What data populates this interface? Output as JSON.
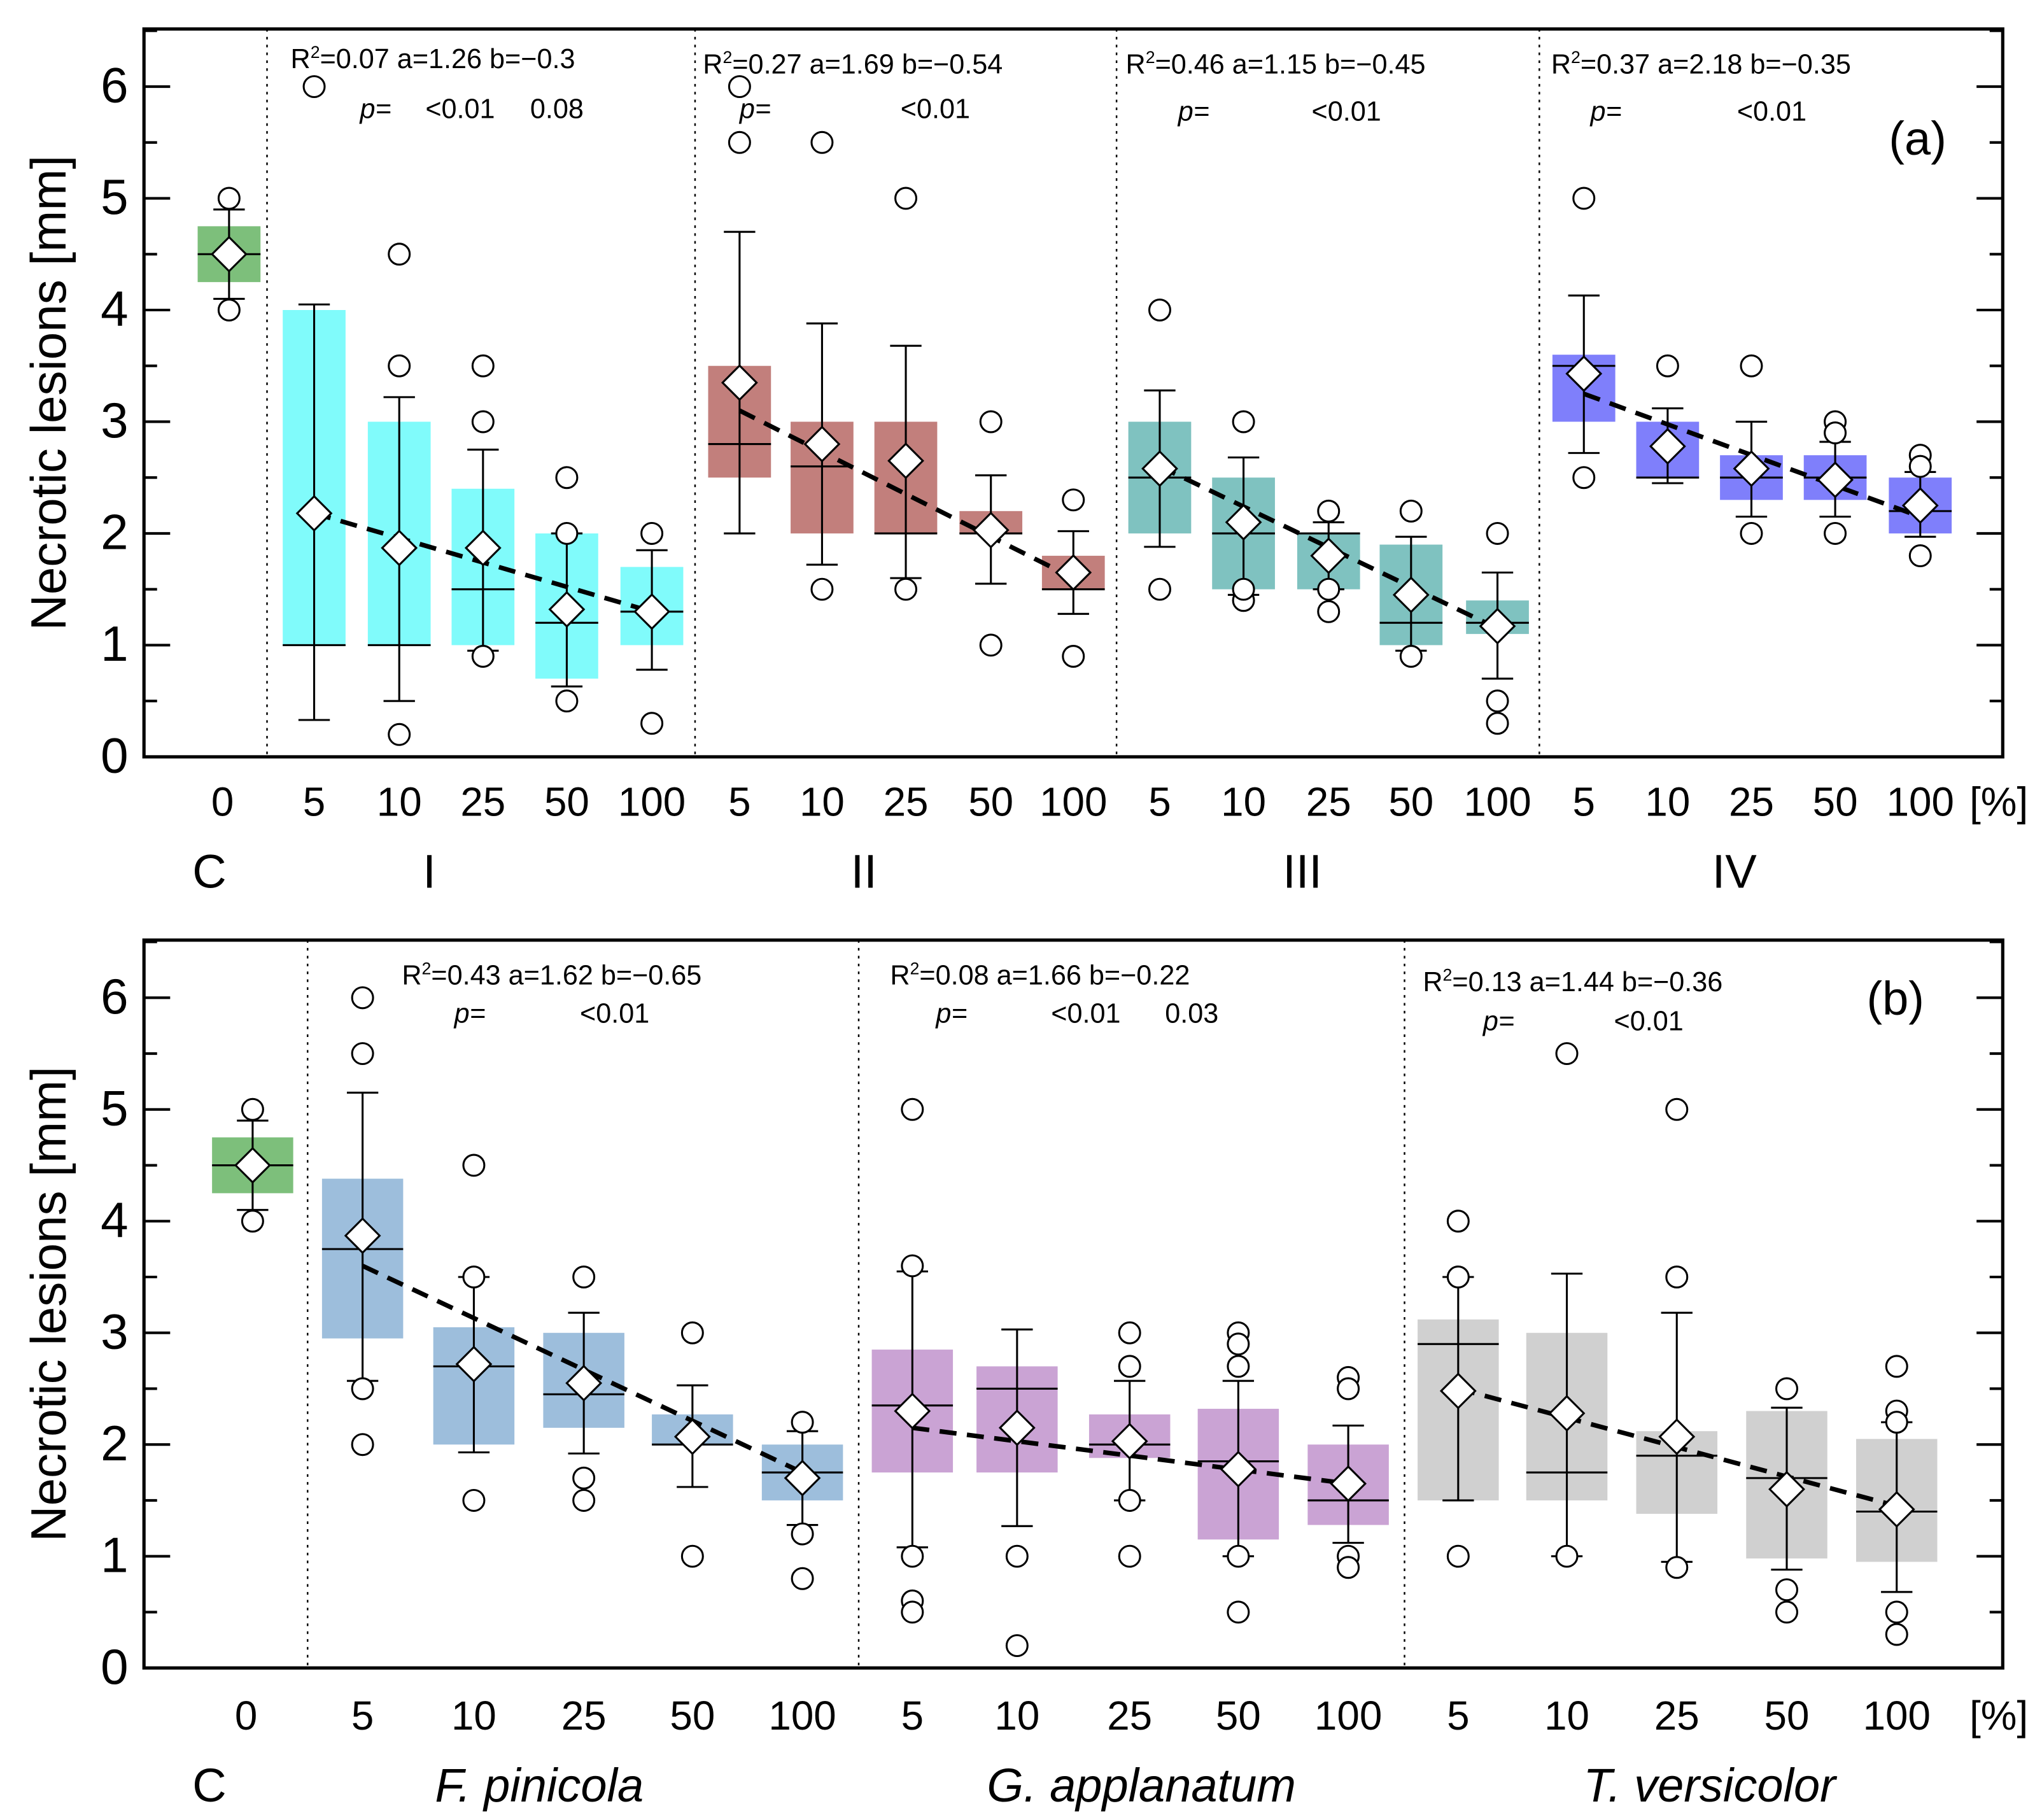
{
  "chart_data": [
    {
      "type": "box",
      "panel_label": "(a)",
      "ylabel": "Necrotic lesions [mm]",
      "ylim": [
        0,
        6.5
      ],
      "yticks": [
        "0",
        "1",
        "2",
        "3",
        "4",
        "5",
        "6"
      ],
      "x_unit": "[%]",
      "r2_symbol": [
        "R",
        "2"
      ],
      "control": {
        "group": "C",
        "category": "0",
        "color": "#7dbf7b",
        "box": {
          "q1": 4.25,
          "q3": 4.75,
          "median": 4.5,
          "mean": 4.5,
          "wlo": 4.1,
          "whi": 4.9,
          "outliers": [
            4,
            5
          ]
        }
      },
      "groups": [
        {
          "name": "I",
          "color": "#80fbfb",
          "categories": [
            "5",
            "10",
            "25",
            "50",
            "100"
          ],
          "annotation": {
            "line1": "=0.07 a=1.26 b=−0.3",
            "p_label": "p=",
            "p_values": [
              "<0.01",
              "0.08"
            ]
          },
          "trend": [
            2.18,
            1.3
          ],
          "boxes": [
            {
              "q1": 1,
              "q3": 4,
              "median": 1,
              "mean": 2.18,
              "wlo": 0.33,
              "whi": 4.05,
              "outliers": [
                6
              ]
            },
            {
              "q1": 1,
              "q3": 3,
              "median": 1,
              "mean": 1.87,
              "wlo": 0.5,
              "whi": 3.22,
              "outliers": [
                4.5,
                3.5,
                0.2
              ]
            },
            {
              "q1": 1,
              "q3": 2.4,
              "median": 1.5,
              "mean": 1.87,
              "wlo": 0.95,
              "whi": 2.75,
              "outliers": [
                3.5,
                3,
                0.9
              ]
            },
            {
              "q1": 0.7,
              "q3": 2,
              "median": 1.2,
              "mean": 1.32,
              "wlo": 0.63,
              "whi": 2,
              "outliers": [
                2.5,
                2,
                0.5
              ]
            },
            {
              "q1": 1,
              "q3": 1.7,
              "median": 1.3,
              "mean": 1.3,
              "wlo": 0.78,
              "whi": 1.85,
              "outliers": [
                2,
                0.3
              ]
            }
          ]
        },
        {
          "name": "II",
          "color": "#c27f7c",
          "categories": [
            "5",
            "10",
            "25",
            "50",
            "100"
          ],
          "annotation": {
            "line1": "=0.27 a=1.69 b=−0.54",
            "p_label": "p=",
            "p_values": [
              "<0.01"
            ]
          },
          "trend": [
            3.1,
            1.6
          ],
          "boxes": [
            {
              "q1": 2.5,
              "q3": 3.5,
              "median": 2.8,
              "mean": 3.35,
              "wlo": 2,
              "whi": 4.7,
              "outliers": [
                6,
                5.5
              ]
            },
            {
              "q1": 2,
              "q3": 3,
              "median": 2.6,
              "mean": 2.8,
              "wlo": 1.72,
              "whi": 3.88,
              "outliers": [
                5.5,
                1.5
              ]
            },
            {
              "q1": 2,
              "q3": 3,
              "median": 2,
              "mean": 2.65,
              "wlo": 1.6,
              "whi": 3.68,
              "outliers": [
                5,
                1.5
              ]
            },
            {
              "q1": 2,
              "q3": 2.2,
              "median": 2,
              "mean": 2.03,
              "wlo": 1.55,
              "whi": 2.52,
              "outliers": [
                3,
                1
              ]
            },
            {
              "q1": 1.5,
              "q3": 1.8,
              "median": 1.5,
              "mean": 1.65,
              "wlo": 1.28,
              "whi": 2.02,
              "outliers": [
                2.3,
                0.9
              ]
            }
          ]
        },
        {
          "name": "III",
          "color": "#7fc2c0",
          "categories": [
            "5",
            "10",
            "25",
            "50",
            "100"
          ],
          "annotation": {
            "line1": "=0.46 a=1.15 b=−0.45",
            "p_label": "p=",
            "p_values": [
              "<0.01"
            ]
          },
          "trend": [
            2.6,
            1.15
          ],
          "boxes": [
            {
              "q1": 2,
              "q3": 3,
              "median": 2.5,
              "mean": 2.58,
              "wlo": 1.88,
              "whi": 3.28,
              "outliers": [
                4,
                1.5
              ]
            },
            {
              "q1": 1.5,
              "q3": 2.5,
              "median": 2,
              "mean": 2.1,
              "wlo": 1.45,
              "whi": 2.68,
              "outliers": [
                3,
                1.4,
                1.5
              ]
            },
            {
              "q1": 1.5,
              "q3": 2,
              "median": 2,
              "mean": 1.8,
              "wlo": 1.5,
              "whi": 2.1,
              "outliers": [
                2.2,
                1.5,
                1.3
              ]
            },
            {
              "q1": 1,
              "q3": 1.9,
              "median": 1.2,
              "mean": 1.45,
              "wlo": 0.95,
              "whi": 1.97,
              "outliers": [
                2.2,
                0.9
              ]
            },
            {
              "q1": 1.1,
              "q3": 1.4,
              "median": 1.2,
              "mean": 1.17,
              "wlo": 0.7,
              "whi": 1.65,
              "outliers": [
                2,
                0.5,
                0.3
              ]
            }
          ]
        },
        {
          "name": "IV",
          "color": "#7f7ffb",
          "categories": [
            "5",
            "10",
            "25",
            "50",
            "100"
          ],
          "annotation": {
            "line1": "=0.37 a=2.18 b=−0.35",
            "p_label": "p=",
            "p_values": [
              "<0.01"
            ]
          },
          "trend": [
            3.25,
            2.15
          ],
          "boxes": [
            {
              "q1": 3,
              "q3": 3.6,
              "median": 3.5,
              "mean": 3.43,
              "wlo": 2.72,
              "whi": 4.13,
              "outliers": [
                5,
                2.5
              ]
            },
            {
              "q1": 2.5,
              "q3": 3,
              "median": 2.5,
              "mean": 2.78,
              "wlo": 2.45,
              "whi": 3.12,
              "outliers": [
                3.5
              ]
            },
            {
              "q1": 2.3,
              "q3": 2.7,
              "median": 2.5,
              "mean": 2.58,
              "wlo": 2.15,
              "whi": 3,
              "outliers": [
                3.5,
                2
              ]
            },
            {
              "q1": 2.3,
              "q3": 2.7,
              "median": 2.5,
              "mean": 2.48,
              "wlo": 2.15,
              "whi": 2.82,
              "outliers": [
                3,
                2.9,
                2
              ]
            },
            {
              "q1": 2,
              "q3": 2.5,
              "median": 2.2,
              "mean": 2.25,
              "wlo": 1.97,
              "whi": 2.55,
              "outliers": [
                2.7,
                2.6,
                1.8
              ]
            }
          ]
        }
      ]
    },
    {
      "type": "box",
      "panel_label": "(b)",
      "ylabel": "Necrotic lesions [mm]",
      "ylim": [
        0,
        6.5
      ],
      "yticks": [
        "0",
        "1",
        "2",
        "3",
        "4",
        "5",
        "6"
      ],
      "x_unit": "[%]",
      "r2_symbol": [
        "R",
        "2"
      ],
      "control": {
        "group": "C",
        "category": "0",
        "color": "#7dbf7b",
        "box": {
          "q1": 4.25,
          "q3": 4.75,
          "median": 4.5,
          "mean": 4.5,
          "wlo": 4.1,
          "whi": 4.9,
          "outliers": [
            4,
            5
          ]
        }
      },
      "groups": [
        {
          "name": "F. pinicola",
          "color": "#9dbedc",
          "categories": [
            "5",
            "10",
            "25",
            "50",
            "100"
          ],
          "annotation": {
            "line1": "=0.43 a=1.62 b=−0.65",
            "p_label": "p=",
            "p_values": [
              "<0.01"
            ]
          },
          "trend": [
            3.6,
            1.75
          ],
          "boxes": [
            {
              "q1": 2.95,
              "q3": 4.38,
              "median": 3.75,
              "mean": 3.87,
              "wlo": 2.57,
              "whi": 5.15,
              "outliers": [
                6,
                5.5,
                2.5,
                2
              ]
            },
            {
              "q1": 2,
              "q3": 3.05,
              "median": 2.7,
              "mean": 2.72,
              "wlo": 1.93,
              "whi": 3.5,
              "outliers": [
                4.5,
                3.5,
                1.5
              ]
            },
            {
              "q1": 2.15,
              "q3": 3,
              "median": 2.45,
              "mean": 2.55,
              "wlo": 1.92,
              "whi": 3.18,
              "outliers": [
                3.5,
                1.7,
                1.5
              ]
            },
            {
              "q1": 2,
              "q3": 2.27,
              "median": 2,
              "mean": 2.07,
              "wlo": 1.62,
              "whi": 2.53,
              "outliers": [
                3,
                1
              ]
            },
            {
              "q1": 1.5,
              "q3": 2,
              "median": 1.75,
              "mean": 1.7,
              "wlo": 1.28,
              "whi": 2.12,
              "outliers": [
                2.2,
                1.2,
                0.8
              ]
            }
          ]
        },
        {
          "name": "G. applanatum",
          "color": "#caa3d4",
          "categories": [
            "5",
            "10",
            "25",
            "50",
            "100"
          ],
          "annotation": {
            "line1": "=0.08  a=1.66 b=−0.22",
            "p_label": "p=",
            "p_values": [
              "<0.01",
              "0.03"
            ]
          },
          "trend": [
            2.15,
            1.65
          ],
          "boxes": [
            {
              "q1": 1.75,
              "q3": 2.85,
              "median": 2.35,
              "mean": 2.3,
              "wlo": 1.08,
              "whi": 3.55,
              "outliers": [
                5,
                3.6,
                1,
                0.6,
                0.5
              ]
            },
            {
              "q1": 1.75,
              "q3": 2.7,
              "median": 2.5,
              "mean": 2.15,
              "wlo": 1.27,
              "whi": 3.03,
              "outliers": [
                1,
                0.2
              ]
            },
            {
              "q1": 1.88,
              "q3": 2.27,
              "median": 2,
              "mean": 2.03,
              "wlo": 1.5,
              "whi": 2.57,
              "outliers": [
                3,
                2.7,
                1.5,
                1
              ]
            },
            {
              "q1": 1.15,
              "q3": 2.32,
              "median": 1.85,
              "mean": 1.78,
              "wlo": 1,
              "whi": 2.57,
              "outliers": [
                3,
                2.9,
                2.7,
                1,
                0.5
              ]
            },
            {
              "q1": 1.28,
              "q3": 2,
              "median": 1.5,
              "mean": 1.65,
              "wlo": 1.12,
              "whi": 2.17,
              "outliers": [
                2.6,
                2.5,
                1,
                0.9
              ]
            }
          ]
        },
        {
          "name": "T. versicolor",
          "color": "#d0d0d0",
          "categories": [
            "5",
            "10",
            "25",
            "50",
            "100"
          ],
          "annotation": {
            "line1": "=0.13 a=1.44 b=−0.36",
            "p_label": "p=",
            "p_values": [
              "<0.01"
            ]
          },
          "trend": [
            2.5,
            1.45
          ],
          "boxes": [
            {
              "q1": 1.5,
              "q3": 3.12,
              "median": 2.9,
              "mean": 2.48,
              "wlo": 1.5,
              "whi": 3.5,
              "outliers": [
                4,
                3.5,
                1
              ]
            },
            {
              "q1": 1.5,
              "q3": 3,
              "median": 1.75,
              "mean": 2.28,
              "wlo": 1,
              "whi": 3.53,
              "outliers": [
                5.5,
                1
              ]
            },
            {
              "q1": 1.38,
              "q3": 2.12,
              "median": 1.9,
              "mean": 2.07,
              "wlo": 0.95,
              "whi": 3.18,
              "outliers": [
                5,
                3.5,
                0.9
              ]
            },
            {
              "q1": 0.98,
              "q3": 2.3,
              "median": 1.7,
              "mean": 1.6,
              "wlo": 0.88,
              "whi": 2.33,
              "outliers": [
                2.5,
                0.7,
                0.5
              ]
            },
            {
              "q1": 0.95,
              "q3": 2.05,
              "median": 1.4,
              "mean": 1.42,
              "wlo": 0.68,
              "whi": 2.2,
              "outliers": [
                2.7,
                2.3,
                2.2,
                0.5,
                0.3
              ]
            }
          ]
        }
      ]
    }
  ]
}
